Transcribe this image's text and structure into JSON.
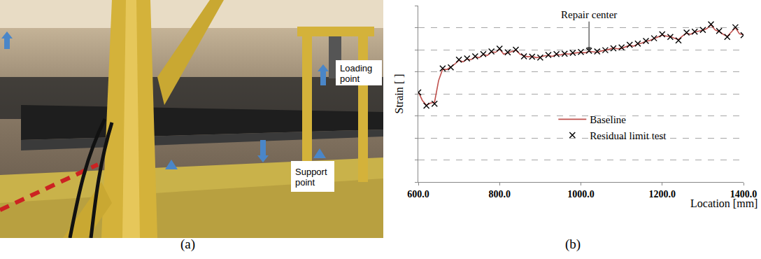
{
  "figure": {
    "panels": [
      {
        "caption": "(a)",
        "labels": [
          "Loading point",
          "Support point"
        ]
      },
      {
        "caption": "(b)"
      }
    ]
  },
  "chart_data": {
    "type": "line",
    "ylabel": "Strain [ ]",
    "xlabel": "Location [mm]",
    "xlim": [
      600,
      1400
    ],
    "xticks": [
      {
        "value": 600,
        "label": "600.0"
      },
      {
        "value": 800,
        "label": "800.0"
      },
      {
        "value": 1000,
        "label": "1000.0"
      },
      {
        "value": 1200,
        "label": "1200.0"
      },
      {
        "value": 1400,
        "label": "1400.0"
      }
    ],
    "ylim": [
      0,
      8
    ],
    "yticks": [
      0,
      1,
      2,
      3,
      4,
      5,
      6,
      7,
      8
    ],
    "grid": true,
    "legend": "center",
    "tick_labels": "x",
    "annotations": [
      {
        "text": "Repair center",
        "x": 1020,
        "y": 5.93
      }
    ],
    "series": [
      {
        "name": "Baseline",
        "type": "line",
        "color": "#c0504d",
        "line_style": "solid",
        "x": [
          600,
          610,
          620,
          630,
          640,
          650,
          660,
          670,
          680,
          690,
          700,
          710,
          720,
          730,
          740,
          750,
          760,
          770,
          780,
          790,
          800,
          810,
          820,
          830,
          840,
          850,
          860,
          870,
          880,
          890,
          900,
          910,
          920,
          930,
          940,
          950,
          960,
          970,
          980,
          990,
          1000,
          1010,
          1020,
          1030,
          1040,
          1050,
          1060,
          1070,
          1080,
          1090,
          1100,
          1110,
          1120,
          1130,
          1140,
          1150,
          1160,
          1170,
          1180,
          1190,
          1200,
          1210,
          1220,
          1230,
          1240,
          1250,
          1260,
          1270,
          1280,
          1290,
          1300,
          1310,
          1320,
          1330,
          1340,
          1350,
          1360,
          1370,
          1380,
          1390,
          1400
        ],
        "values": [
          4.09,
          3.7,
          3.48,
          3.58,
          3.62,
          4.6,
          5.12,
          5.1,
          5.22,
          5.35,
          5.52,
          5.45,
          5.58,
          5.55,
          5.68,
          5.64,
          5.78,
          5.74,
          5.9,
          5.88,
          6.03,
          5.8,
          5.86,
          5.92,
          5.98,
          5.8,
          5.72,
          5.68,
          5.7,
          5.64,
          5.66,
          5.72,
          5.74,
          5.7,
          5.78,
          5.76,
          5.82,
          5.8,
          5.84,
          5.86,
          5.88,
          5.86,
          5.93,
          5.9,
          5.88,
          5.94,
          5.97,
          6.02,
          6.08,
          6.04,
          6.06,
          6.12,
          6.2,
          6.16,
          6.26,
          6.3,
          6.38,
          6.42,
          6.5,
          6.56,
          6.66,
          6.62,
          6.6,
          6.52,
          6.46,
          6.62,
          6.75,
          6.7,
          6.8,
          6.84,
          6.88,
          6.96,
          7.12,
          6.9,
          6.82,
          6.7,
          6.6,
          6.8,
          7.0,
          6.72,
          6.68
        ]
      },
      {
        "name": "Residual limit test",
        "type": "scatter",
        "color": "#000000",
        "marker": "x",
        "x": [
          600,
          620,
          640,
          660,
          680,
          700,
          720,
          740,
          760,
          780,
          800,
          820,
          840,
          860,
          880,
          900,
          920,
          940,
          960,
          980,
          1000,
          1020,
          1040,
          1060,
          1080,
          1100,
          1120,
          1140,
          1160,
          1180,
          1200,
          1220,
          1240,
          1260,
          1280,
          1300,
          1320,
          1340,
          1360,
          1380,
          1400
        ],
        "values": [
          4.06,
          3.46,
          3.55,
          5.15,
          5.2,
          5.55,
          5.6,
          5.7,
          5.8,
          5.92,
          6.05,
          5.88,
          6.0,
          5.7,
          5.68,
          5.64,
          5.76,
          5.8,
          5.82,
          5.86,
          5.9,
          5.95,
          5.92,
          5.98,
          6.06,
          6.1,
          6.22,
          6.28,
          6.4,
          6.52,
          6.7,
          6.58,
          6.42,
          6.78,
          6.82,
          6.9,
          7.15,
          6.85,
          6.58,
          7.02,
          6.66
        ]
      }
    ]
  }
}
